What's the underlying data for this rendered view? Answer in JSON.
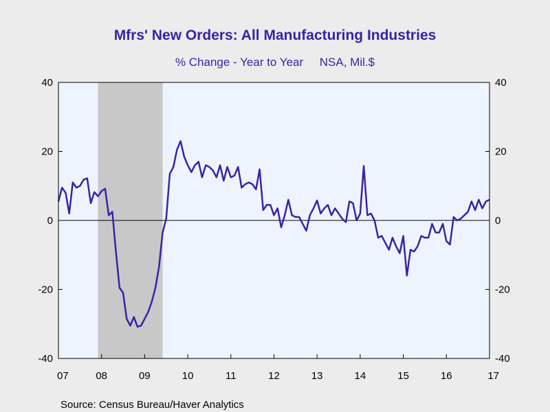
{
  "chart_data": {
    "type": "line",
    "title": "Mfrs' New Orders: All Manufacturing Industries",
    "subtitle": "% Change - Year to Year     NSA, Mil.$",
    "source": "Source:  Census Bureau/Haver Analytics",
    "xlabel": "",
    "ylabel": "",
    "x_range": [
      2007.0,
      2017.0
    ],
    "ylim": [
      -40,
      40
    ],
    "y_ticks": [
      40,
      20,
      0,
      -20,
      -40
    ],
    "y_tick_labels": [
      "40",
      "20",
      "0",
      "-20",
      "-40"
    ],
    "x_ticks": [
      2007,
      2008,
      2009,
      2010,
      2011,
      2012,
      2013,
      2014,
      2015,
      2016,
      2017
    ],
    "x_tick_labels": [
      "07",
      "08",
      "09",
      "10",
      "11",
      "12",
      "13",
      "14",
      "15",
      "16",
      "17"
    ],
    "recession": {
      "start": 2007.917,
      "end": 2009.417,
      "color": "#c8c8c8"
    },
    "plot_background": "#eef4fe",
    "line_color": "#3a22a6",
    "series": [
      {
        "x": [
          2007.0,
          2007.083,
          2007.167,
          2007.25,
          2007.333,
          2007.417,
          2007.5,
          2007.583,
          2007.667,
          2007.75,
          2007.833,
          2007.917,
          2008.0,
          2008.083,
          2008.167,
          2008.25,
          2008.333,
          2008.417,
          2008.5,
          2008.583,
          2008.667,
          2008.75,
          2008.833,
          2008.917,
          2009.0,
          2009.083,
          2009.167,
          2009.25,
          2009.333,
          2009.417,
          2009.5,
          2009.583,
          2009.667,
          2009.75,
          2009.833,
          2009.917,
          2010.0,
          2010.083,
          2010.167,
          2010.25,
          2010.333,
          2010.417,
          2010.5,
          2010.583,
          2010.667,
          2010.75,
          2010.833,
          2010.917,
          2011.0,
          2011.083,
          2011.167,
          2011.25,
          2011.333,
          2011.417,
          2011.5,
          2011.583,
          2011.667,
          2011.75,
          2011.833,
          2011.917,
          2012.0,
          2012.083,
          2012.167,
          2012.25,
          2012.333,
          2012.417,
          2012.5,
          2012.583,
          2012.667,
          2012.75,
          2012.833,
          2012.917,
          2013.0,
          2013.083,
          2013.167,
          2013.25,
          2013.333,
          2013.417,
          2013.5,
          2013.583,
          2013.667,
          2013.75,
          2013.833,
          2013.917,
          2014.0,
          2014.083,
          2014.167,
          2014.25,
          2014.333,
          2014.417,
          2014.5,
          2014.583,
          2014.667,
          2014.75,
          2014.833,
          2014.917,
          2015.0,
          2015.083,
          2015.167,
          2015.25,
          2015.333,
          2015.417,
          2015.5,
          2015.583,
          2015.667,
          2015.75,
          2015.833,
          2015.917,
          2016.0,
          2016.083,
          2016.167,
          2016.25,
          2016.333,
          2016.417,
          2016.5,
          2016.583,
          2016.667,
          2016.75,
          2016.833,
          2016.917,
          2017.0
        ],
        "values": [
          5.5,
          9.5,
          8.0,
          2.0,
          11.0,
          9.5,
          10.0,
          11.8,
          12.2,
          5.0,
          8.2,
          7.0,
          8.5,
          9.2,
          1.5,
          2.5,
          -9.0,
          -19.5,
          -21.0,
          -28.5,
          -30.5,
          -28.0,
          -30.8,
          -30.5,
          -28.5,
          -26.5,
          -23.5,
          -19.5,
          -13.5,
          -3.5,
          0.5,
          13.5,
          15.5,
          20.5,
          23.0,
          18.5,
          16.0,
          14.0,
          16.0,
          17.0,
          12.5,
          16.0,
          15.5,
          14.5,
          12.5,
          16.0,
          11.5,
          15.5,
          12.5,
          13.0,
          15.5,
          9.5,
          10.5,
          11.0,
          10.5,
          9.0,
          14.8,
          3.0,
          4.5,
          4.5,
          1.5,
          3.5,
          -2.0,
          1.5,
          6.0,
          1.5,
          1.0,
          1.0,
          -1.0,
          -3.0,
          1.5,
          3.5,
          5.8,
          2.0,
          3.5,
          4.5,
          1.5,
          3.5,
          2.0,
          0.5,
          -0.5,
          5.5,
          5.0,
          0.0,
          2.0,
          15.8,
          1.5,
          2.0,
          0.0,
          -5.0,
          -4.5,
          -6.5,
          -8.5,
          -5.0,
          -7.5,
          -9.5,
          -4.5,
          -16.0,
          -8.5,
          -9.0,
          -7.5,
          -4.5,
          -5.0,
          -5.0,
          -1.0,
          -3.5,
          -3.5,
          -1.0,
          -6.0,
          -7.0,
          1.0,
          0.0,
          0.5,
          1.5,
          2.5,
          5.5,
          3.0,
          6.0,
          3.5,
          5.5,
          6.0
        ]
      }
    ]
  }
}
